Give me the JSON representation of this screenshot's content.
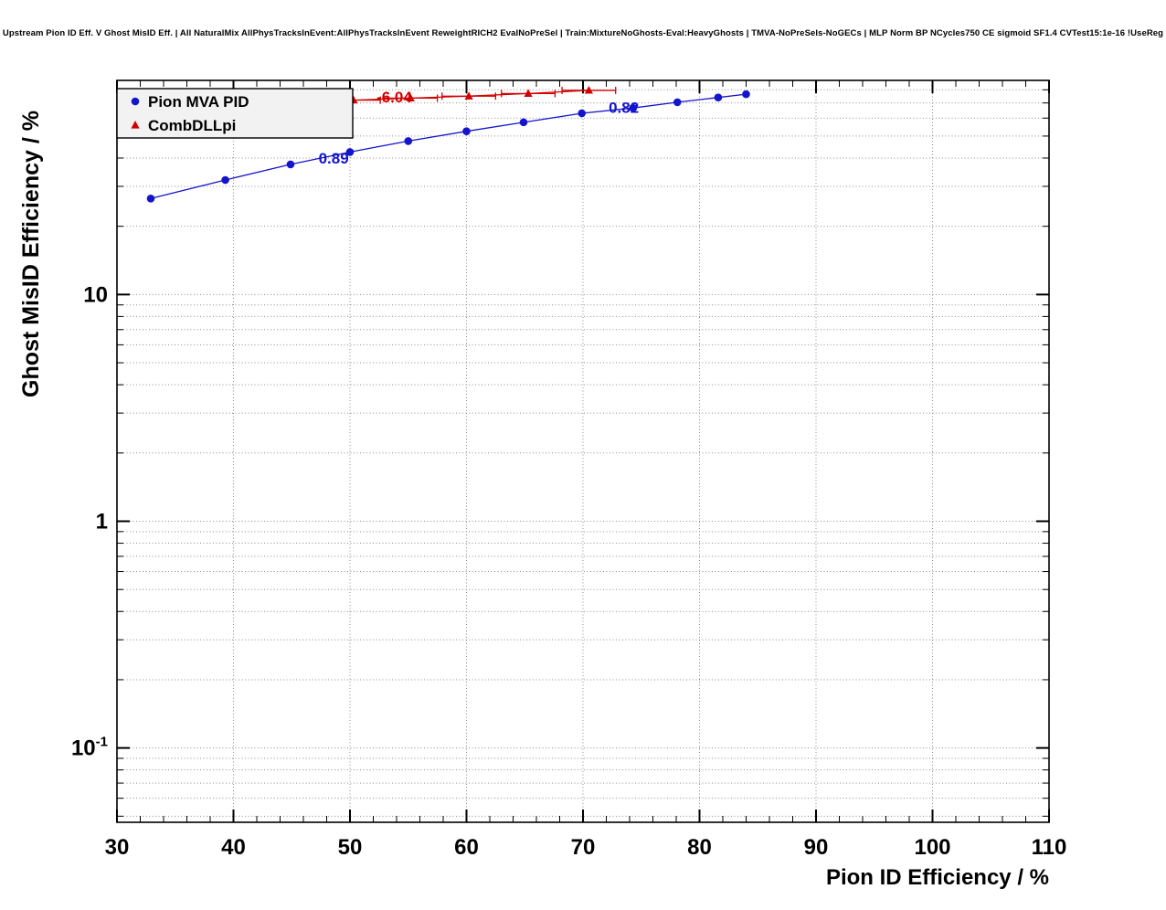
{
  "chart_data": {
    "type": "line",
    "title": "Upstream Pion ID Eff. V Ghost MisID Eff. | All NaturalMix AllPhysTracksInEvent:AllPhysTracksInEvent ReweightRICH2 EvalNoPreSel | Train:MixtureNoGhosts-Eval:HeavyGhosts | TMVA-NoPreSels-NoGECs | MLP Norm BP NCycles750 CE sigmoid SF1.4 CVTest15:1e-16 !UseReg",
    "xlabel": "Pion ID Efficiency / %",
    "ylabel": "Ghost MisID Efficiency / %",
    "x_axis": {
      "min": 30,
      "max": 110,
      "major_tick_step": 10,
      "minor_tick_step": 2,
      "tick_labels": [
        "30",
        "40",
        "50",
        "60",
        "70",
        "80",
        "90",
        "100",
        "110"
      ]
    },
    "y_axis": {
      "scale": "log",
      "min": 0.047,
      "max": 88,
      "tick_labels": [
        {
          "value": 10,
          "base": "10",
          "sup": ""
        },
        {
          "value": 1,
          "base": "1",
          "sup": ""
        },
        {
          "value": 0.1,
          "base": "10",
          "sup": "-1"
        }
      ]
    },
    "grid": {
      "show": true,
      "style": "dotted",
      "color": "#8c8c8c"
    },
    "frame_color": "#000000",
    "legend": {
      "position": "top-left",
      "entries": [
        "Pion MVA PID",
        "CombDLLpi"
      ],
      "fill": "#f2f2f2",
      "border": "#000000"
    },
    "series": [
      {
        "name": "Pion MVA PID",
        "color": "#1414cc",
        "marker": "circle",
        "xerr": 0,
        "points": [
          [
            32.9,
            26.5
          ],
          [
            39.3,
            32.0
          ],
          [
            44.9,
            37.5
          ],
          [
            50.0,
            42.5
          ],
          [
            55.0,
            47.5
          ],
          [
            60.0,
            52.5
          ],
          [
            64.9,
            57.5
          ],
          [
            69.9,
            63.0
          ],
          [
            74.3,
            66.5
          ],
          [
            78.1,
            70.5
          ],
          [
            81.6,
            74.0
          ],
          [
            84.0,
            76.5
          ]
        ]
      },
      {
        "name": "CombDLLpi",
        "color": "#d40000",
        "marker": "triangle",
        "xerr": 2.3,
        "points": [
          [
            50.3,
            72.0
          ],
          [
            55.2,
            73.5
          ],
          [
            60.2,
            75.0
          ],
          [
            65.3,
            77.0
          ],
          [
            70.5,
            79.5
          ]
        ]
      }
    ],
    "annotations": [
      {
        "text": "0.89",
        "x": 48.6,
        "y": 40.0,
        "color": "#1414cc"
      },
      {
        "text": "0.82",
        "x": 73.5,
        "y": 67.0,
        "color": "#1414cc"
      },
      {
        "text": "-6.04",
        "x": 53.8,
        "y": 74.5,
        "color": "#d40000"
      }
    ]
  }
}
